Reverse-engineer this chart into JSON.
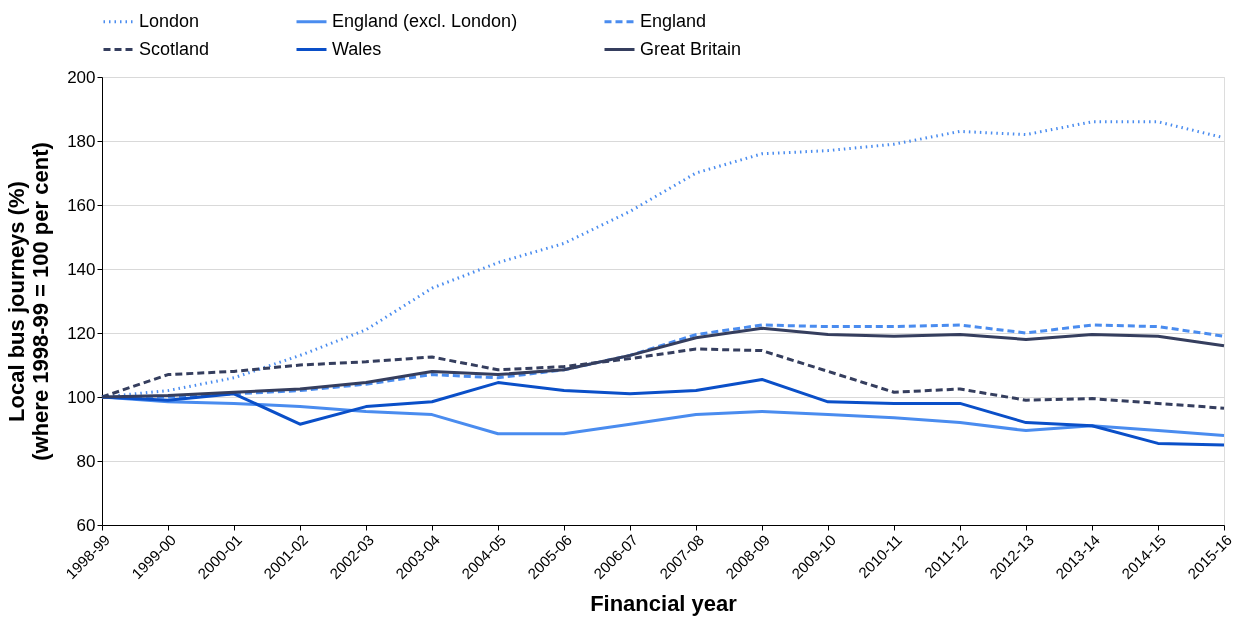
{
  "chart_data": {
    "type": "line",
    "xlabel": "Financial year",
    "ylabel": "Local bus journeys (%)\n(where  1998-99 = 100 per cent)",
    "categories": [
      "1998-99",
      "1999-00",
      "2000-01",
      "2001-02",
      "2002-03",
      "2003-04",
      "2004-05",
      "2005-06",
      "2006-07",
      "2007-08",
      "2008-09",
      "2009-10",
      "2010-11",
      "2011-12",
      "2012-13",
      "2013-14",
      "2014-15",
      "2015-16"
    ],
    "series": [
      {
        "name": "London",
        "color": "#4a8cef",
        "line_style": "dotted",
        "values": [
          100,
          102,
          106,
          113,
          121,
          134,
          142,
          148,
          158,
          170,
          176,
          177,
          179,
          183,
          182,
          186,
          186,
          181
        ]
      },
      {
        "name": "England (excl. London)",
        "color": "#4a8cef",
        "line_style": "solid",
        "values": [
          100,
          98.5,
          98,
          97,
          95.5,
          94.5,
          88.5,
          88.5,
          91.5,
          94.5,
          95.5,
          94.5,
          93.5,
          92,
          89.5,
          91,
          89.5,
          88
        ]
      },
      {
        "name": "England",
        "color": "#4a8cef",
        "line_style": "dashed",
        "values": [
          100,
          100,
          101,
          102,
          104,
          107,
          106,
          108.5,
          113,
          119.5,
          122.5,
          122,
          122,
          122.5,
          120,
          122.5,
          122,
          119
        ]
      },
      {
        "name": "Scotland",
        "color": "#353e5e",
        "line_style": "dashed",
        "values": [
          100,
          107,
          108,
          110,
          111,
          112.5,
          108.5,
          109.5,
          112,
          115,
          114.5,
          108,
          101.5,
          102.5,
          99,
          99.5,
          98,
          96.5
        ]
      },
      {
        "name": "Wales",
        "color": "#0a4fc8",
        "line_style": "solid",
        "values": [
          100,
          99,
          101,
          91.5,
          97,
          98.5,
          104.5,
          102,
          101,
          102,
          105.5,
          98.5,
          98,
          98,
          92,
          91,
          85.5,
          85
        ]
      },
      {
        "name": "Great Britain",
        "color": "#353e5e",
        "line_style": "solid",
        "values": [
          100,
          100.5,
          101.5,
          102.5,
          104.5,
          108,
          107,
          108.5,
          113,
          118.5,
          121.5,
          119.5,
          119,
          119.5,
          118,
          119.5,
          119,
          116
        ]
      }
    ],
    "ylim": [
      60,
      200
    ],
    "yticks": [
      60,
      80,
      100,
      120,
      140,
      160,
      180,
      200
    ],
    "grid": "y",
    "legend": "top"
  }
}
